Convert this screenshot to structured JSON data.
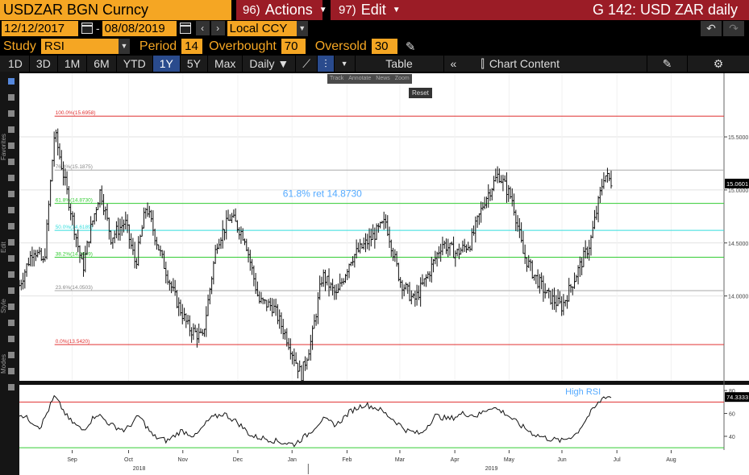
{
  "header": {
    "security": "USDZAR BGN Curncy",
    "actions": {
      "num": "96)",
      "label": "Actions"
    },
    "edit": {
      "num": "97)",
      "label": "Edit"
    },
    "title": "G 142: USD ZAR daily"
  },
  "range": {
    "start": "12/12/2017",
    "end": "08/08/2019",
    "sep": "-",
    "currency": "Local CCY"
  },
  "study": {
    "label": "Study",
    "value": "RSI",
    "period_label": "Period",
    "period": "14",
    "overbought_label": "Overbought",
    "overbought": "70",
    "oversold_label": "Oversold",
    "oversold": "30"
  },
  "toolbar": {
    "periods": [
      "1D",
      "3D",
      "1M",
      "6M",
      "YTD",
      "1Y",
      "5Y",
      "Max"
    ],
    "active_period": "1Y",
    "frequency": "Daily",
    "table": "Table",
    "chart_content": "Chart Content"
  },
  "mini_tools": [
    "Track",
    "Annotate",
    "News",
    "Zoom"
  ],
  "reset": "Reset",
  "side_labels": [
    "Favorites",
    "Edit",
    "Style",
    "Modes"
  ],
  "colors": {
    "amber": "#f5a623",
    "red_tab": "#9b1c26",
    "fib_red": "#e03030",
    "fib_green": "#33cc33",
    "fib_cyan": "#33dddd",
    "fib_gray": "#aaaaaa",
    "annotation": "#55aaff"
  },
  "chart_data": {
    "type": "ohlc",
    "x_ticks": [
      "Sep",
      "Oct",
      "Nov",
      "Dec",
      "Jan",
      "Feb",
      "Mar",
      "Apr",
      "May",
      "Jun",
      "Jul",
      "Aug"
    ],
    "year_labels": [
      "2018",
      "2019"
    ],
    "y_ticks": [
      14.0,
      14.5,
      15.0,
      15.5
    ],
    "y_tick_labels": [
      "14.0000",
      "14.5000",
      "15.0000",
      "15.5000"
    ],
    "ylim": [
      13.2,
      16.1
    ],
    "last_price": "15.0601",
    "fib_levels": [
      {
        "label": "100.0%(15.6958)",
        "value": 15.6958,
        "color": "#e03030"
      },
      {
        "label": "76.4%(15.1875)",
        "value": 15.1875,
        "color": "#aaaaaa"
      },
      {
        "label": "61.8%(14.8730)",
        "value": 14.873,
        "color": "#33cc33"
      },
      {
        "label": "50.0%(14.6189)",
        "value": 14.6189,
        "color": "#33dddd"
      },
      {
        "label": "38.2%(14.3649)",
        "value": 14.3649,
        "color": "#33cc33"
      },
      {
        "label": "23.6%(14.0503)",
        "value": 14.0503,
        "color": "#aaaaaa"
      },
      {
        "label": "0.0%(13.5420)",
        "value": 13.542,
        "color": "#e03030"
      }
    ],
    "annotation": "61.8% ret 14.8730",
    "price_path": [
      [
        0,
        14.1
      ],
      [
        0.02,
        14.45
      ],
      [
        0.035,
        14.3
      ],
      [
        0.05,
        15.55
      ],
      [
        0.07,
        14.9
      ],
      [
        0.09,
        14.25
      ],
      [
        0.1,
        14.6
      ],
      [
        0.115,
        15.0
      ],
      [
        0.13,
        14.55
      ],
      [
        0.15,
        14.7
      ],
      [
        0.165,
        14.3
      ],
      [
        0.18,
        14.85
      ],
      [
        0.2,
        14.4
      ],
      [
        0.22,
        14.0
      ],
      [
        0.24,
        13.7
      ],
      [
        0.26,
        13.6
      ],
      [
        0.28,
        14.5
      ],
      [
        0.3,
        14.75
      ],
      [
        0.32,
        14.55
      ],
      [
        0.34,
        13.95
      ],
      [
        0.36,
        13.9
      ],
      [
        0.38,
        13.6
      ],
      [
        0.4,
        13.25
      ],
      [
        0.415,
        13.6
      ],
      [
        0.43,
        14.2
      ],
      [
        0.45,
        14.0
      ],
      [
        0.47,
        14.35
      ],
      [
        0.5,
        14.55
      ],
      [
        0.52,
        14.7
      ],
      [
        0.54,
        14.15
      ],
      [
        0.56,
        13.95
      ],
      [
        0.58,
        14.2
      ],
      [
        0.6,
        14.5
      ],
      [
        0.62,
        14.4
      ],
      [
        0.64,
        14.5
      ],
      [
        0.66,
        14.9
      ],
      [
        0.68,
        15.15
      ],
      [
        0.7,
        14.9
      ],
      [
        0.715,
        14.4
      ],
      [
        0.73,
        14.2
      ],
      [
        0.75,
        14.0
      ],
      [
        0.77,
        13.9
      ],
      [
        0.79,
        14.2
      ],
      [
        0.81,
        14.5
      ],
      [
        0.83,
        15.15
      ],
      [
        0.842,
        15.06
      ]
    ],
    "rsi": {
      "overbought": 70,
      "oversold": 30,
      "ylim": [
        28,
        85
      ],
      "y_tick_labels": [
        "40",
        "60",
        "80"
      ],
      "y_ticks": [
        40,
        60,
        80
      ],
      "last_value": "74.3333",
      "annotation": "High RSI",
      "path": [
        [
          0,
          60
        ],
        [
          0.03,
          48
        ],
        [
          0.05,
          75
        ],
        [
          0.07,
          55
        ],
        [
          0.09,
          45
        ],
        [
          0.11,
          60
        ],
        [
          0.13,
          50
        ],
        [
          0.15,
          45
        ],
        [
          0.17,
          58
        ],
        [
          0.19,
          40
        ],
        [
          0.21,
          36
        ],
        [
          0.23,
          45
        ],
        [
          0.25,
          40
        ],
        [
          0.27,
          55
        ],
        [
          0.29,
          60
        ],
        [
          0.31,
          52
        ],
        [
          0.33,
          40
        ],
        [
          0.35,
          38
        ],
        [
          0.37,
          35
        ],
        [
          0.39,
          33
        ],
        [
          0.41,
          42
        ],
        [
          0.43,
          55
        ],
        [
          0.45,
          50
        ],
        [
          0.47,
          62
        ],
        [
          0.49,
          68
        ],
        [
          0.51,
          64
        ],
        [
          0.53,
          55
        ],
        [
          0.55,
          45
        ],
        [
          0.57,
          42
        ],
        [
          0.59,
          58
        ],
        [
          0.61,
          55
        ],
        [
          0.63,
          60
        ],
        [
          0.65,
          58
        ],
        [
          0.67,
          66
        ],
        [
          0.69,
          60
        ],
        [
          0.71,
          50
        ],
        [
          0.73,
          42
        ],
        [
          0.75,
          38
        ],
        [
          0.77,
          36
        ],
        [
          0.79,
          42
        ],
        [
          0.81,
          60
        ],
        [
          0.83,
          75
        ],
        [
          0.842,
          74.3
        ]
      ]
    }
  }
}
